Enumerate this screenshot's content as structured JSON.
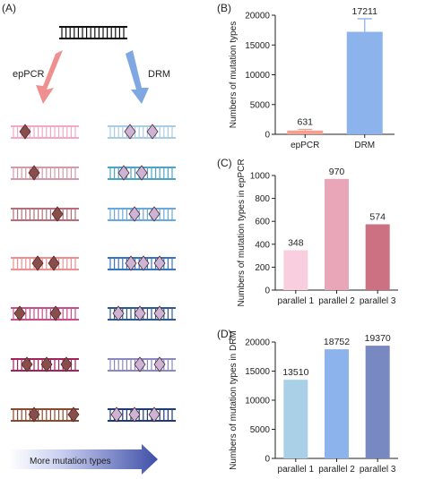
{
  "panel_labels": {
    "a": "(A)",
    "b": "(B)",
    "c": "(C)",
    "d": "(D)"
  },
  "schematic": {
    "left_label": "epPCR",
    "right_label": "DRM",
    "bottom_arrow_label": "More mutation types",
    "colors": {
      "left_arrow": "#f08f8f",
      "right_arrow": "#7fa8e2",
      "left_diamond": "#8a4e4a",
      "right_diamond": "#cdb3d6",
      "left_rows": [
        "#f4a9c3",
        "#d49aa8",
        "#b66f78",
        "#f08f8f",
        "#c84f8a",
        "#a3245a",
        "#8a4a2e"
      ],
      "right_rows": [
        "#a9cde4",
        "#4da3c8",
        "#6aa9de",
        "#3a73bf",
        "#2f5a8e",
        "#8a88c0",
        "#1f3a78"
      ]
    }
  },
  "chart_data": [
    {
      "panel": "B",
      "type": "bar",
      "categories": [
        "epPCR",
        "DRM"
      ],
      "values": [
        631,
        17211
      ],
      "errors": [
        200,
        2200
      ],
      "colors": [
        "#f4a092",
        "#8cb3ec"
      ],
      "ylabel": "Numbers of mutation types",
      "ylim": [
        0,
        20000
      ],
      "yticks": [
        "0",
        "5000",
        "10000",
        "15000",
        "20000"
      ],
      "data_labels": [
        "631",
        "17211"
      ]
    },
    {
      "panel": "C",
      "type": "bar",
      "categories": [
        "parallel 1",
        "parallel 2",
        "parallel 3"
      ],
      "values": [
        348,
        970,
        574
      ],
      "colors": [
        "#f9cfe0",
        "#e8a6b8",
        "#cc7181"
      ],
      "ylabel": "Numbers of mutation types in epPCR",
      "ylim": [
        0,
        1000
      ],
      "yticks": [
        "0",
        "200",
        "400",
        "600",
        "800",
        "1000"
      ],
      "data_labels": [
        "348",
        "970",
        "574"
      ]
    },
    {
      "panel": "D",
      "type": "bar",
      "categories": [
        "parallel 1",
        "parallel 2",
        "parallel 3"
      ],
      "values": [
        13510,
        18752,
        19370
      ],
      "colors": [
        "#a9d0e6",
        "#8cb3ec",
        "#7888c0"
      ],
      "ylabel": "Numbers of mutation types in DRM",
      "ylim": [
        0,
        20000
      ],
      "yticks": [
        "0",
        "5000",
        "10000",
        "15000",
        "20000"
      ],
      "data_labels": [
        "13510",
        "18752",
        "19370"
      ]
    }
  ]
}
